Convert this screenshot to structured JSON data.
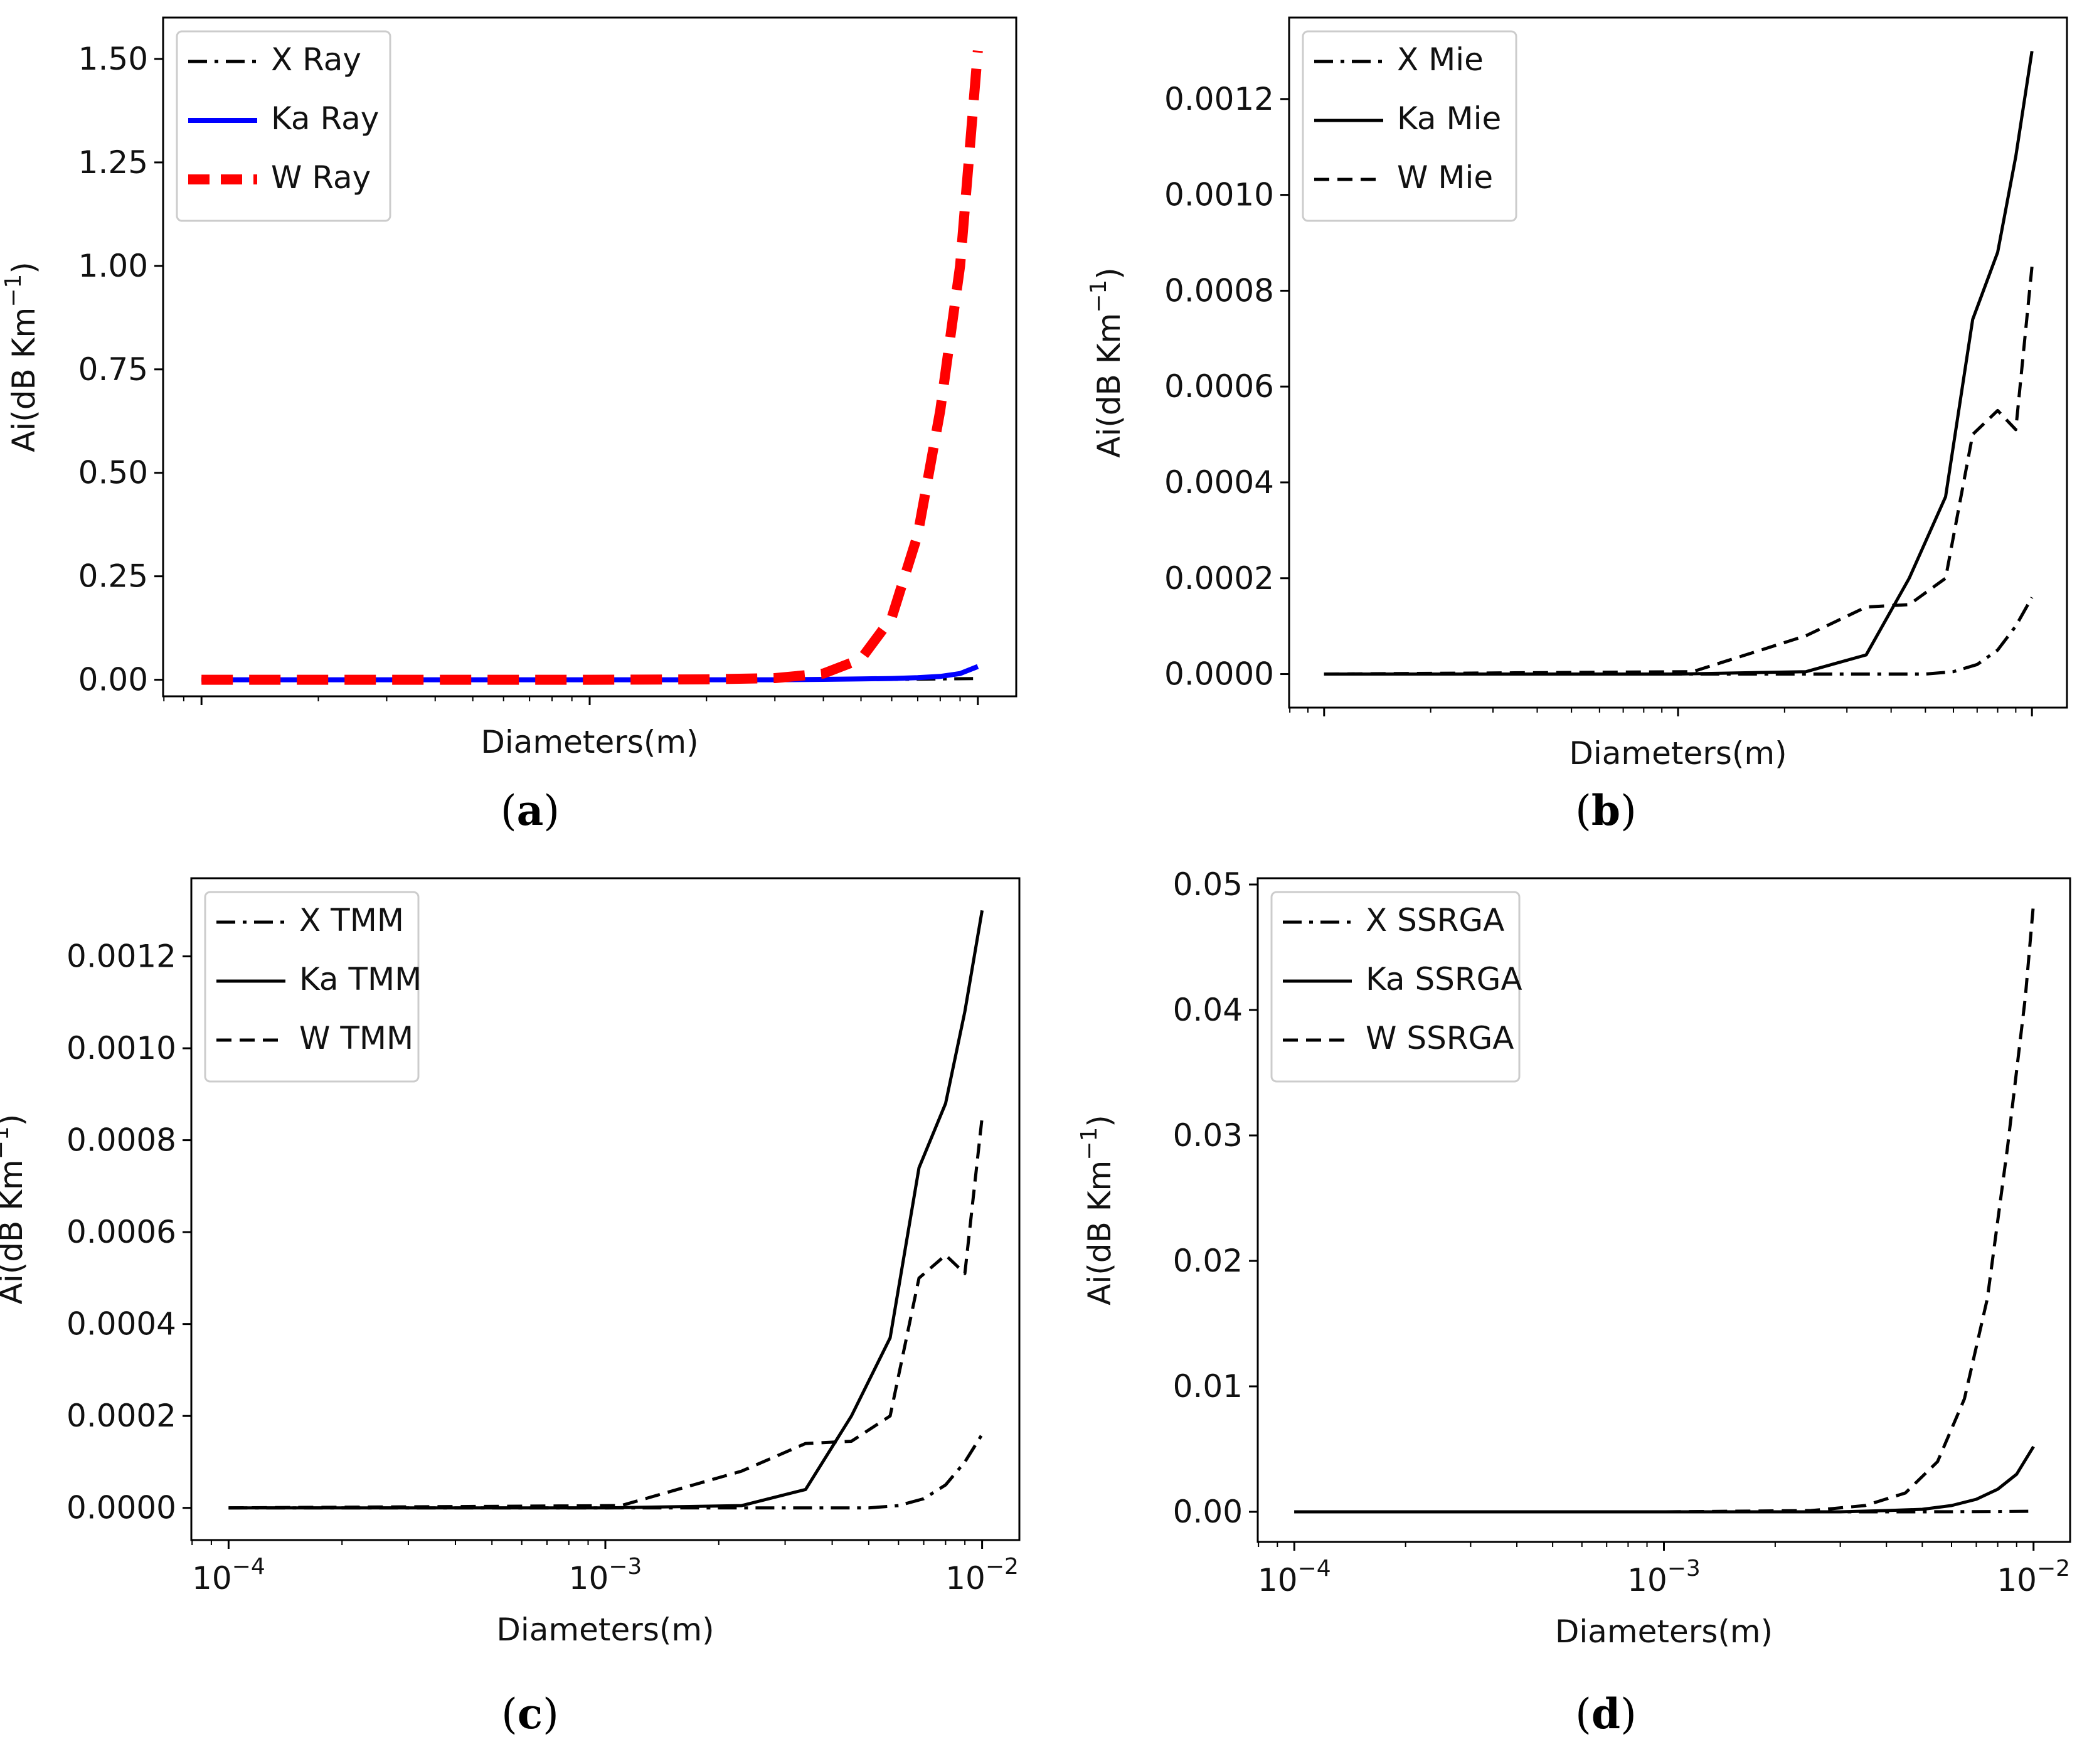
{
  "chart_data": [
    {
      "id": "a",
      "type": "line",
      "panel_label": "a",
      "xlabel": "Diameters(m)",
      "ylabel": "Ai(dB Km",
      "ylabel_sup": "−1",
      "ylabel_close": ")",
      "xscale": "log",
      "xlim": [
        0.0001,
        0.01
      ],
      "xticks_shown": false,
      "ylim": [
        -0.04,
        1.6
      ],
      "yticks": [
        "0.00",
        "0.25",
        "0.50",
        "0.75",
        "1.00",
        "1.25",
        "1.50"
      ],
      "ytick_values": [
        0,
        0.25,
        0.5,
        0.75,
        1.0,
        1.25,
        1.5
      ],
      "legend_position": "top-left",
      "series": [
        {
          "name": "X Ray",
          "color": "#000000",
          "style": "dashdot",
          "width": "normal",
          "x": [
            0.0001,
            0.0002,
            0.0005,
            0.001,
            0.002,
            0.004,
            0.006,
            0.008,
            0.01
          ],
          "y": [
            0,
            0,
            0,
            0,
            0,
            0.0005,
            0.001,
            0.002,
            0.003
          ]
        },
        {
          "name": "Ka Ray",
          "color": "#0000ff",
          "style": "solid",
          "width": "medium",
          "x": [
            0.0001,
            0.0003,
            0.001,
            0.003,
            0.004,
            0.005,
            0.006,
            0.007,
            0.008,
            0.009,
            0.01
          ],
          "y": [
            0,
            0,
            0,
            0,
            0.001,
            0.002,
            0.003,
            0.005,
            0.008,
            0.015,
            0.032
          ]
        },
        {
          "name": "W Ray",
          "color": "#ff0000",
          "style": "dashed",
          "width": "thick",
          "x": [
            0.0001,
            0.0003,
            0.001,
            0.002,
            0.003,
            0.004,
            0.005,
            0.006,
            0.007,
            0.008,
            0.009,
            0.01
          ],
          "y": [
            0,
            0,
            0,
            0.001,
            0.004,
            0.015,
            0.05,
            0.15,
            0.35,
            0.65,
            1.0,
            1.52
          ]
        }
      ]
    },
    {
      "id": "b",
      "type": "line",
      "panel_label": "b",
      "xlabel": "Diameters(m)",
      "ylabel": "Ai(dB Km",
      "ylabel_sup": "−1",
      "ylabel_close": ")",
      "xscale": "log",
      "xlim": [
        0.0001,
        0.01
      ],
      "xticks_shown": false,
      "ylim": [
        -7e-05,
        0.00137
      ],
      "yticks": [
        "0.0000",
        "0.0002",
        "0.0004",
        "0.0006",
        "0.0008",
        "0.0010",
        "0.0012"
      ],
      "ytick_values": [
        0,
        0.0002,
        0.0004,
        0.0006,
        0.0008,
        0.001,
        0.0012
      ],
      "legend_position": "top-left",
      "series": [
        {
          "name": "X Mie",
          "color": "#000000",
          "style": "dashdot",
          "width": "normal",
          "x": [
            0.0001,
            0.001,
            0.003,
            0.005,
            0.006,
            0.007,
            0.008,
            0.009,
            0.01
          ],
          "y": [
            0,
            0,
            0,
            0,
            5e-06,
            2e-05,
            5e-05,
            0.0001,
            0.00016
          ]
        },
        {
          "name": "Ka Mie",
          "color": "#000000",
          "style": "solid",
          "width": "normal",
          "x": [
            0.0001,
            0.001,
            0.0023,
            0.0034,
            0.0045,
            0.0057,
            0.0068,
            0.008,
            0.009,
            0.01
          ],
          "y": [
            0,
            0,
            5e-06,
            4e-05,
            0.0002,
            0.00037,
            0.00074,
            0.00088,
            0.00108,
            0.0013
          ]
        },
        {
          "name": "W Mie",
          "color": "#000000",
          "style": "dashed",
          "width": "normal",
          "x": [
            0.0001,
            0.0011,
            0.0023,
            0.0034,
            0.0045,
            0.0057,
            0.0068,
            0.008,
            0.009,
            0.01
          ],
          "y": [
            0,
            5e-06,
            8e-05,
            0.00014,
            0.000145,
            0.0002,
            0.0005,
            0.00055,
            0.00051,
            0.00085
          ]
        }
      ]
    },
    {
      "id": "c",
      "type": "line",
      "panel_label": "c",
      "xlabel": "Diameters(m)",
      "ylabel": "Ai(dB Km",
      "ylabel_sup": "−1",
      "ylabel_close": ")",
      "xscale": "log",
      "xlim": [
        0.0001,
        0.01
      ],
      "xticks_shown": true,
      "xticks": [
        {
          "base": "10",
          "exp": "−4"
        },
        {
          "base": "10",
          "exp": "−3"
        },
        {
          "base": "10",
          "exp": "−2"
        }
      ],
      "xtick_values": [
        0.0001,
        0.001,
        0.01
      ],
      "ylim": [
        -7e-05,
        0.00137
      ],
      "yticks": [
        "0.0000",
        "0.0002",
        "0.0004",
        "0.0006",
        "0.0008",
        "0.0010",
        "0.0012"
      ],
      "ytick_values": [
        0,
        0.0002,
        0.0004,
        0.0006,
        0.0008,
        0.001,
        0.0012
      ],
      "legend_position": "top-left",
      "series": [
        {
          "name": "X TMM",
          "color": "#000000",
          "style": "dashdot",
          "width": "normal",
          "x": [
            0.0001,
            0.001,
            0.003,
            0.005,
            0.006,
            0.007,
            0.008,
            0.009,
            0.01
          ],
          "y": [
            0,
            0,
            0,
            0,
            5e-06,
            2e-05,
            5e-05,
            0.0001,
            0.00016
          ]
        },
        {
          "name": "Ka TMM",
          "color": "#000000",
          "style": "solid",
          "width": "normal",
          "x": [
            0.0001,
            0.001,
            0.0023,
            0.0034,
            0.0045,
            0.0057,
            0.0068,
            0.008,
            0.009,
            0.01
          ],
          "y": [
            0,
            0,
            5e-06,
            4e-05,
            0.0002,
            0.00037,
            0.00074,
            0.00088,
            0.00108,
            0.0013
          ]
        },
        {
          "name": "W TMM",
          "color": "#000000",
          "style": "dashed",
          "width": "normal",
          "x": [
            0.0001,
            0.0011,
            0.0023,
            0.0034,
            0.0045,
            0.0057,
            0.0068,
            0.008,
            0.009,
            0.01
          ],
          "y": [
            0,
            5e-06,
            8e-05,
            0.00014,
            0.000145,
            0.0002,
            0.0005,
            0.00055,
            0.00051,
            0.00085
          ]
        }
      ]
    },
    {
      "id": "d",
      "type": "line",
      "panel_label": "d",
      "xlabel": "Diameters(m)",
      "ylabel": "Ai(dB Km",
      "ylabel_sup": "−1",
      "ylabel_close": ")",
      "xscale": "log",
      "xlim": [
        0.0001,
        0.01
      ],
      "xticks_shown": true,
      "xticks": [
        {
          "base": "10",
          "exp": "−4"
        },
        {
          "base": "10",
          "exp": "−3"
        },
        {
          "base": "10",
          "exp": "−2"
        }
      ],
      "xtick_values": [
        0.0001,
        0.001,
        0.01
      ],
      "ylim": [
        -0.0024,
        0.0505
      ],
      "yticks": [
        "0.00",
        "0.01",
        "0.02",
        "0.03",
        "0.04",
        "0.05"
      ],
      "ytick_values": [
        0,
        0.01,
        0.02,
        0.03,
        0.04,
        0.05
      ],
      "legend_position": "top-left",
      "series": [
        {
          "name": "X SSRGA",
          "color": "#000000",
          "style": "dashdot",
          "width": "normal",
          "x": [
            0.0001,
            0.001,
            0.005,
            0.008,
            0.01
          ],
          "y": [
            0,
            0,
            0,
            2e-05,
            5e-05
          ]
        },
        {
          "name": "Ka SSRGA",
          "color": "#000000",
          "style": "solid",
          "width": "normal",
          "x": [
            0.0001,
            0.001,
            0.003,
            0.004,
            0.005,
            0.006,
            0.007,
            0.008,
            0.009,
            0.01
          ],
          "y": [
            0,
            0,
            0,
            0.0001,
            0.0002,
            0.0005,
            0.001,
            0.0018,
            0.003,
            0.0052
          ]
        },
        {
          "name": "W SSRGA",
          "color": "#000000",
          "style": "dashed",
          "width": "normal",
          "x": [
            0.0001,
            0.001,
            0.0025,
            0.0035,
            0.0045,
            0.0055,
            0.0065,
            0.0075,
            0.0085,
            0.0095,
            0.01
          ],
          "y": [
            0,
            0,
            0.0001,
            0.0005,
            0.0015,
            0.004,
            0.009,
            0.017,
            0.029,
            0.041,
            0.0485
          ]
        }
      ]
    }
  ]
}
